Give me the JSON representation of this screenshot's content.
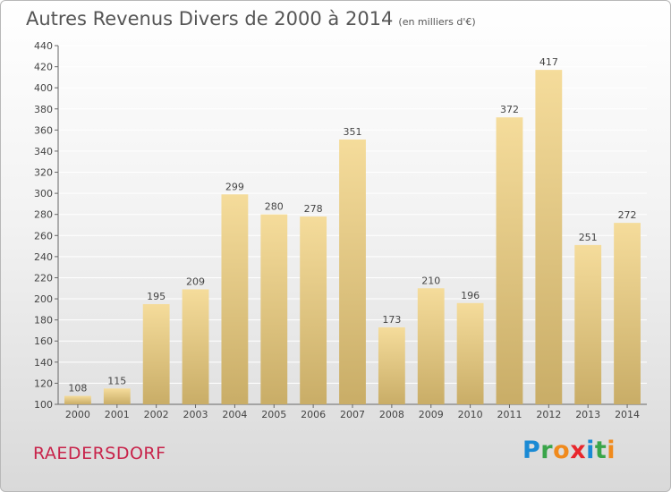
{
  "header": {
    "title": "Autres Revenus Divers de 2000 à 2014",
    "unit": "(en milliers d'€)"
  },
  "footer": {
    "commune": "RAEDERSDORF"
  },
  "logo": {
    "letters": [
      {
        "char": "P",
        "color": "#1a8ad4"
      },
      {
        "char": "r",
        "color": "#3aa54a"
      },
      {
        "char": "o",
        "color": "#f08a1c"
      },
      {
        "char": "x",
        "color": "#e8262c"
      },
      {
        "char": "i",
        "color": "#1a8ad4"
      },
      {
        "char": "t",
        "color": "#3aa54a"
      },
      {
        "char": "i",
        "color": "#f08a1c"
      }
    ]
  },
  "colors": {
    "bar_light": "#f5dc9b",
    "bar_dark": "#c9ad67",
    "grid": "#ffffff"
  },
  "chart_data": {
    "type": "bar",
    "categories": [
      "2000",
      "2001",
      "2002",
      "2003",
      "2004",
      "2005",
      "2006",
      "2007",
      "2008",
      "2009",
      "2010",
      "2011",
      "2012",
      "2013",
      "2014"
    ],
    "values": [
      108,
      115,
      195,
      209,
      299,
      280,
      278,
      351,
      173,
      210,
      196,
      372,
      417,
      251,
      272
    ],
    "ylim": [
      100,
      440
    ],
    "yticks": [
      100,
      120,
      140,
      160,
      180,
      200,
      220,
      240,
      260,
      280,
      300,
      320,
      340,
      360,
      380,
      400,
      420,
      440
    ],
    "grid": true
  }
}
